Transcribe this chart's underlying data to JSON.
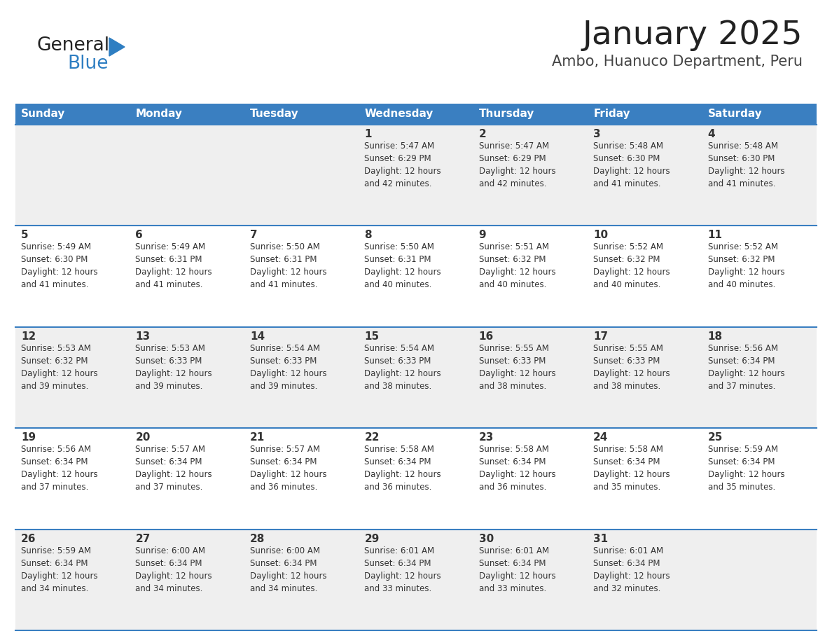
{
  "title": "January 2025",
  "subtitle": "Ambo, Huanuco Department, Peru",
  "header_bg_color": "#3a7fc1",
  "header_text_color": "#ffffff",
  "row_bg_even": "#efefef",
  "row_bg_odd": "#ffffff",
  "day_names": [
    "Sunday",
    "Monday",
    "Tuesday",
    "Wednesday",
    "Thursday",
    "Friday",
    "Saturday"
  ],
  "weeks": [
    [
      {
        "day": "",
        "info": ""
      },
      {
        "day": "",
        "info": ""
      },
      {
        "day": "",
        "info": ""
      },
      {
        "day": "1",
        "info": "Sunrise: 5:47 AM\nSunset: 6:29 PM\nDaylight: 12 hours\nand 42 minutes."
      },
      {
        "day": "2",
        "info": "Sunrise: 5:47 AM\nSunset: 6:29 PM\nDaylight: 12 hours\nand 42 minutes."
      },
      {
        "day": "3",
        "info": "Sunrise: 5:48 AM\nSunset: 6:30 PM\nDaylight: 12 hours\nand 41 minutes."
      },
      {
        "day": "4",
        "info": "Sunrise: 5:48 AM\nSunset: 6:30 PM\nDaylight: 12 hours\nand 41 minutes."
      }
    ],
    [
      {
        "day": "5",
        "info": "Sunrise: 5:49 AM\nSunset: 6:30 PM\nDaylight: 12 hours\nand 41 minutes."
      },
      {
        "day": "6",
        "info": "Sunrise: 5:49 AM\nSunset: 6:31 PM\nDaylight: 12 hours\nand 41 minutes."
      },
      {
        "day": "7",
        "info": "Sunrise: 5:50 AM\nSunset: 6:31 PM\nDaylight: 12 hours\nand 41 minutes."
      },
      {
        "day": "8",
        "info": "Sunrise: 5:50 AM\nSunset: 6:31 PM\nDaylight: 12 hours\nand 40 minutes."
      },
      {
        "day": "9",
        "info": "Sunrise: 5:51 AM\nSunset: 6:32 PM\nDaylight: 12 hours\nand 40 minutes."
      },
      {
        "day": "10",
        "info": "Sunrise: 5:52 AM\nSunset: 6:32 PM\nDaylight: 12 hours\nand 40 minutes."
      },
      {
        "day": "11",
        "info": "Sunrise: 5:52 AM\nSunset: 6:32 PM\nDaylight: 12 hours\nand 40 minutes."
      }
    ],
    [
      {
        "day": "12",
        "info": "Sunrise: 5:53 AM\nSunset: 6:32 PM\nDaylight: 12 hours\nand 39 minutes."
      },
      {
        "day": "13",
        "info": "Sunrise: 5:53 AM\nSunset: 6:33 PM\nDaylight: 12 hours\nand 39 minutes."
      },
      {
        "day": "14",
        "info": "Sunrise: 5:54 AM\nSunset: 6:33 PM\nDaylight: 12 hours\nand 39 minutes."
      },
      {
        "day": "15",
        "info": "Sunrise: 5:54 AM\nSunset: 6:33 PM\nDaylight: 12 hours\nand 38 minutes."
      },
      {
        "day": "16",
        "info": "Sunrise: 5:55 AM\nSunset: 6:33 PM\nDaylight: 12 hours\nand 38 minutes."
      },
      {
        "day": "17",
        "info": "Sunrise: 5:55 AM\nSunset: 6:33 PM\nDaylight: 12 hours\nand 38 minutes."
      },
      {
        "day": "18",
        "info": "Sunrise: 5:56 AM\nSunset: 6:34 PM\nDaylight: 12 hours\nand 37 minutes."
      }
    ],
    [
      {
        "day": "19",
        "info": "Sunrise: 5:56 AM\nSunset: 6:34 PM\nDaylight: 12 hours\nand 37 minutes."
      },
      {
        "day": "20",
        "info": "Sunrise: 5:57 AM\nSunset: 6:34 PM\nDaylight: 12 hours\nand 37 minutes."
      },
      {
        "day": "21",
        "info": "Sunrise: 5:57 AM\nSunset: 6:34 PM\nDaylight: 12 hours\nand 36 minutes."
      },
      {
        "day": "22",
        "info": "Sunrise: 5:58 AM\nSunset: 6:34 PM\nDaylight: 12 hours\nand 36 minutes."
      },
      {
        "day": "23",
        "info": "Sunrise: 5:58 AM\nSunset: 6:34 PM\nDaylight: 12 hours\nand 36 minutes."
      },
      {
        "day": "24",
        "info": "Sunrise: 5:58 AM\nSunset: 6:34 PM\nDaylight: 12 hours\nand 35 minutes."
      },
      {
        "day": "25",
        "info": "Sunrise: 5:59 AM\nSunset: 6:34 PM\nDaylight: 12 hours\nand 35 minutes."
      }
    ],
    [
      {
        "day": "26",
        "info": "Sunrise: 5:59 AM\nSunset: 6:34 PM\nDaylight: 12 hours\nand 34 minutes."
      },
      {
        "day": "27",
        "info": "Sunrise: 6:00 AM\nSunset: 6:34 PM\nDaylight: 12 hours\nand 34 minutes."
      },
      {
        "day": "28",
        "info": "Sunrise: 6:00 AM\nSunset: 6:34 PM\nDaylight: 12 hours\nand 34 minutes."
      },
      {
        "day": "29",
        "info": "Sunrise: 6:01 AM\nSunset: 6:34 PM\nDaylight: 12 hours\nand 33 minutes."
      },
      {
        "day": "30",
        "info": "Sunrise: 6:01 AM\nSunset: 6:34 PM\nDaylight: 12 hours\nand 33 minutes."
      },
      {
        "day": "31",
        "info": "Sunrise: 6:01 AM\nSunset: 6:34 PM\nDaylight: 12 hours\nand 32 minutes."
      },
      {
        "day": "",
        "info": ""
      }
    ]
  ],
  "logo_text_general": "General",
  "logo_text_blue": "Blue",
  "logo_color_general": "#222222",
  "logo_color_blue": "#2e7ec2",
  "logo_triangle_color": "#2e7ec2",
  "title_color": "#222222",
  "subtitle_color": "#444444",
  "cell_text_color": "#333333",
  "cell_day_color": "#333333",
  "divider_color": "#3a7fc1",
  "background_color": "#ffffff",
  "header_fontsize": 11,
  "day_num_fontsize": 11,
  "cell_info_fontsize": 8.5,
  "title_fontsize": 34,
  "subtitle_fontsize": 15
}
